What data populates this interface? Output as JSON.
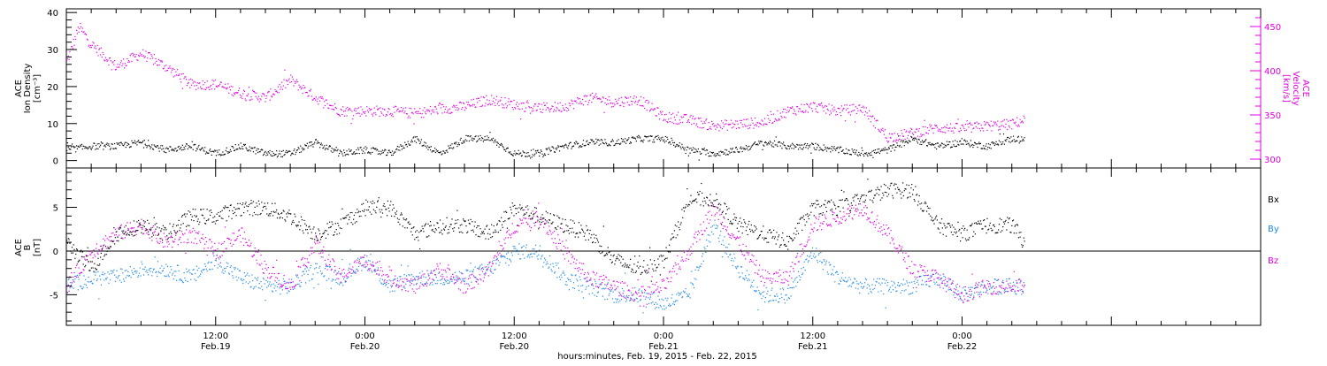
{
  "colors": {
    "density": "#000000",
    "velocity": "#e000e0",
    "bx": "#000000",
    "by": "#1e88e5",
    "bz": "#e000e0",
    "axis": "#000000"
  },
  "xaxis": {
    "title": "hours:minutes, Feb. 19, 2015 - Feb. 22, 2015",
    "start_hour": 0,
    "end_hour": 96,
    "data_end_hour": 77,
    "ticks": [
      {
        "hour": 12,
        "time": "12:00",
        "date": "Feb.19"
      },
      {
        "hour": 24,
        "time": "0:00",
        "date": "Feb.20"
      },
      {
        "hour": 36,
        "time": "12:00",
        "date": "Feb.20"
      },
      {
        "hour": 48,
        "time": "0:00",
        "date": "Feb.21"
      },
      {
        "hour": 60,
        "time": "12:00",
        "date": "Feb.21"
      },
      {
        "hour": 72,
        "time": "0:00",
        "date": "Feb.22"
      }
    ]
  },
  "top_panel": {
    "left_label_lines": [
      "ACE",
      "Ion Density",
      "[cm⁻³]"
    ],
    "right_label_lines": [
      "ACE",
      "Velocity",
      "[km/s]"
    ],
    "left_ticks": [
      "0",
      "10",
      "20",
      "30",
      "40"
    ],
    "right_ticks": [
      "300",
      "350",
      "400",
      "450"
    ]
  },
  "bottom_panel": {
    "left_label_lines": [
      "ACE",
      "B",
      "[nT]"
    ],
    "ticks": [
      "-5",
      "0",
      "5"
    ],
    "legend": [
      "Bx",
      "By",
      "Bz"
    ]
  },
  "chart_data": [
    {
      "type": "scatter",
      "title": "",
      "xlabel": "hours:minutes, Feb. 19, 2015 - Feb. 22, 2015",
      "ylabel": "ACE Ion Density [cm⁻³]",
      "y2label": "ACE Velocity [km/s]",
      "ylim": [
        -2,
        41
      ],
      "y2lim": [
        290,
        470
      ],
      "series": [
        {
          "name": "Ion Density",
          "axis": "left",
          "x": [
            0,
            2,
            4,
            6,
            8,
            10,
            12,
            14,
            16,
            18,
            20,
            22,
            24,
            26,
            28,
            30,
            32,
            34,
            36,
            38,
            40,
            42,
            44,
            46,
            48,
            50,
            52,
            54,
            56,
            58,
            60,
            62,
            64,
            66,
            68,
            70,
            72,
            74,
            76,
            77
          ],
          "values": [
            3,
            4,
            4,
            5,
            3,
            4,
            2,
            4,
            2,
            2,
            5,
            2,
            3,
            2,
            6,
            2,
            6,
            6,
            2,
            2,
            4,
            5,
            5,
            6,
            6,
            3,
            2,
            3,
            5,
            4,
            4,
            3,
            2,
            3,
            6,
            4,
            5,
            4,
            6,
            6
          ]
        },
        {
          "name": "Velocity",
          "axis": "right",
          "x": [
            0,
            1,
            2,
            4,
            6,
            8,
            10,
            12,
            14,
            16,
            18,
            20,
            22,
            24,
            26,
            28,
            30,
            32,
            34,
            36,
            38,
            40,
            42,
            44,
            46,
            48,
            50,
            52,
            54,
            56,
            58,
            60,
            62,
            64,
            66,
            68,
            70,
            72,
            74,
            76,
            77
          ],
          "values": [
            410,
            450,
            430,
            405,
            420,
            405,
            385,
            385,
            375,
            370,
            390,
            370,
            355,
            355,
            355,
            352,
            357,
            360,
            368,
            362,
            358,
            360,
            370,
            365,
            368,
            348,
            345,
            338,
            340,
            342,
            355,
            360,
            355,
            358,
            325,
            330,
            336,
            335,
            338,
            340,
            345
          ]
        }
      ]
    },
    {
      "type": "scatter",
      "title": "",
      "xlabel": "hours:minutes, Feb. 19, 2015 - Feb. 22, 2015",
      "ylabel": "ACE B [nT]",
      "ylim": [
        -8.5,
        9.5
      ],
      "series": [
        {
          "name": "Bx",
          "x": [
            0,
            2,
            4,
            6,
            8,
            10,
            12,
            14,
            16,
            18,
            20,
            22,
            24,
            26,
            28,
            30,
            32,
            34,
            36,
            38,
            40,
            42,
            44,
            46,
            48,
            50,
            52,
            54,
            56,
            58,
            60,
            62,
            64,
            66,
            68,
            70,
            72,
            74,
            76,
            77
          ],
          "values": [
            1,
            -2,
            2,
            3,
            2,
            4,
            4,
            5,
            5,
            4,
            2,
            3,
            5,
            5,
            2,
            3,
            3,
            2,
            5,
            4,
            3,
            2,
            -1,
            -2,
            -1,
            6,
            6,
            3,
            2,
            1,
            5,
            5,
            6,
            7,
            7,
            3,
            2,
            3,
            3,
            1
          ]
        },
        {
          "name": "By",
          "x": [
            0,
            2,
            4,
            6,
            8,
            10,
            12,
            14,
            16,
            18,
            20,
            22,
            24,
            26,
            28,
            30,
            32,
            34,
            36,
            38,
            40,
            42,
            44,
            46,
            48,
            50,
            52,
            54,
            56,
            58,
            60,
            62,
            64,
            66,
            68,
            70,
            72,
            74,
            76,
            77
          ],
          "values": [
            -4,
            -3,
            -3,
            -2,
            -2,
            -3,
            -1,
            -3,
            -4,
            -4,
            -2,
            -3,
            -1,
            -4,
            -3,
            -3,
            -3,
            -2,
            0,
            0,
            -3,
            -4,
            -5,
            -5,
            -6,
            -5,
            3,
            -2,
            -5,
            -5,
            0,
            -3,
            -4,
            -4,
            -4,
            -3,
            -5,
            -4,
            -4,
            -4
          ]
        },
        {
          "name": "Bz",
          "x": [
            0,
            2,
            4,
            6,
            8,
            10,
            12,
            14,
            16,
            18,
            20,
            22,
            24,
            26,
            28,
            30,
            32,
            34,
            36,
            38,
            40,
            42,
            44,
            46,
            48,
            50,
            52,
            54,
            56,
            58,
            60,
            62,
            64,
            66,
            68,
            70,
            72,
            74,
            76,
            77
          ],
          "values": [
            -4,
            0,
            2,
            3,
            1,
            2,
            0,
            2,
            -2,
            -4,
            1,
            -3,
            -1,
            -3,
            -4,
            -2,
            -4,
            -2,
            3,
            4,
            0,
            -3,
            -4,
            -5,
            -4,
            0,
            5,
            1,
            -3,
            -3,
            3,
            4,
            5,
            2,
            -2,
            -3,
            -5,
            -4,
            -4,
            -4
          ]
        }
      ]
    }
  ]
}
